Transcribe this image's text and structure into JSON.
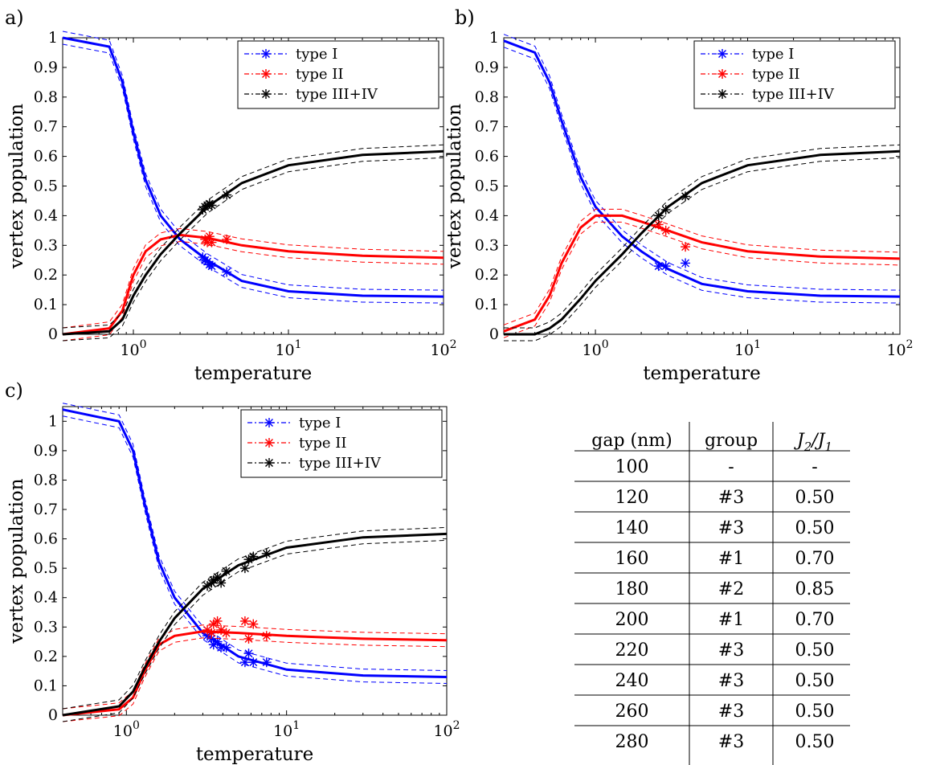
{
  "panel_labels": [
    "a)",
    "b)",
    "c)"
  ],
  "colors": {
    "type_I": "#0000ff",
    "type_II": "#ff0000",
    "type_III_IV": "#000000"
  },
  "chart_data": [
    {
      "type": "line",
      "panel": "a)",
      "xlabel": "temperature",
      "ylabel": "vertex population",
      "x_scale": "log",
      "xlim": [
        0.35,
        100
      ],
      "ylim": [
        0,
        1
      ],
      "x_ticks": [
        "10^0",
        "10^1",
        "10^2"
      ],
      "y_ticks": [
        "0",
        "0.1",
        "0.2",
        "0.3",
        "0.4",
        "0.5",
        "0.6",
        "0.7",
        "0.8",
        "0.9",
        "1"
      ],
      "legend_position": "top-right",
      "series": [
        {
          "name": "type I",
          "color": "#0000ff",
          "curve": {
            "x": [
              0.35,
              0.7,
              0.85,
              1.0,
              1.2,
              1.5,
              2,
              3,
              5,
              10,
              30,
              100
            ],
            "y": [
              1.0,
              0.97,
              0.85,
              0.68,
              0.52,
              0.4,
              0.32,
              0.25,
              0.18,
              0.145,
              0.13,
              0.127
            ]
          },
          "markers": {
            "x": [
              2.8,
              2.9,
              3.0,
              3.1,
              3.2,
              4.0
            ],
            "y": [
              0.26,
              0.25,
              0.245,
              0.235,
              0.23,
              0.21
            ]
          }
        },
        {
          "name": "type II",
          "color": "#ff0000",
          "curve": {
            "x": [
              0.35,
              0.7,
              0.85,
              1.0,
              1.2,
              1.5,
              2,
              3,
              5,
              10,
              30,
              100
            ],
            "y": [
              0.0,
              0.02,
              0.08,
              0.2,
              0.28,
              0.32,
              0.335,
              0.325,
              0.3,
              0.28,
              0.265,
              0.258
            ]
          },
          "markers": {
            "x": [
              2.9,
              3.0,
              3.1,
              3.2,
              4.0
            ],
            "y": [
              0.32,
              0.31,
              0.33,
              0.31,
              0.32
            ]
          }
        },
        {
          "name": "type III+IV",
          "color": "#000000",
          "curve": {
            "x": [
              0.35,
              0.7,
              0.85,
              1.0,
              1.2,
              1.5,
              2,
              3,
              5,
              10,
              30,
              100
            ],
            "y": [
              0.0,
              0.01,
              0.05,
              0.13,
              0.2,
              0.27,
              0.34,
              0.43,
              0.51,
              0.57,
              0.605,
              0.617
            ]
          },
          "markers": {
            "x": [
              2.8,
              2.9,
              3.0,
              3.1,
              3.2,
              4.0
            ],
            "y": [
              0.42,
              0.43,
              0.435,
              0.44,
              0.435,
              0.47
            ]
          }
        }
      ]
    },
    {
      "type": "line",
      "panel": "b)",
      "xlabel": "temperature",
      "ylabel": "vertex population",
      "x_scale": "log",
      "xlim": [
        0.25,
        100
      ],
      "ylim": [
        0,
        1
      ],
      "x_ticks": [
        "10^0",
        "10^1",
        "10^2"
      ],
      "y_ticks": [
        "0",
        "0.1",
        "0.2",
        "0.3",
        "0.4",
        "0.5",
        "0.6",
        "0.7",
        "0.8",
        "0.9",
        "1"
      ],
      "legend_position": "top-right",
      "series": [
        {
          "name": "type I",
          "color": "#0000ff",
          "curve": {
            "x": [
              0.25,
              0.4,
              0.5,
              0.6,
              0.8,
              1.0,
              1.5,
              2,
              3,
              5,
              10,
              30,
              100
            ],
            "y": [
              0.99,
              0.95,
              0.85,
              0.72,
              0.53,
              0.43,
              0.33,
              0.28,
              0.22,
              0.17,
              0.145,
              0.13,
              0.127
            ]
          },
          "markers": {
            "x": [
              2.6,
              2.9,
              3.9
            ],
            "y": [
              0.23,
              0.23,
              0.24
            ]
          }
        },
        {
          "name": "type II",
          "color": "#ff0000",
          "curve": {
            "x": [
              0.25,
              0.4,
              0.5,
              0.6,
              0.8,
              1.0,
              1.5,
              2,
              3,
              5,
              10,
              30,
              100
            ],
            "y": [
              0.01,
              0.05,
              0.13,
              0.24,
              0.36,
              0.4,
              0.4,
              0.38,
              0.35,
              0.31,
              0.28,
              0.262,
              0.255
            ]
          },
          "markers": {
            "x": [
              2.6,
              2.9,
              3.9
            ],
            "y": [
              0.37,
              0.35,
              0.295
            ]
          }
        },
        {
          "name": "type III+IV",
          "color": "#000000",
          "curve": {
            "x": [
              0.25,
              0.4,
              0.5,
              0.6,
              0.8,
              1.0,
              1.5,
              2,
              3,
              5,
              10,
              30,
              100
            ],
            "y": [
              0.0,
              0.0,
              0.02,
              0.05,
              0.12,
              0.18,
              0.27,
              0.34,
              0.43,
              0.51,
              0.57,
              0.605,
              0.617
            ]
          },
          "markers": {
            "x": [
              2.6,
              2.9,
              3.9
            ],
            "y": [
              0.4,
              0.42,
              0.465
            ]
          }
        }
      ]
    },
    {
      "type": "line",
      "panel": "c)",
      "xlabel": "temperature",
      "ylabel": "vertex population",
      "x_scale": "log",
      "xlim": [
        0.4,
        100
      ],
      "ylim": [
        0,
        1.05
      ],
      "x_ticks": [
        "10^0",
        "10^1",
        "10^2"
      ],
      "y_ticks": [
        "0",
        "0.1",
        "0.2",
        "0.3",
        "0.4",
        "0.5",
        "0.6",
        "0.7",
        "0.8",
        "0.9",
        "1"
      ],
      "legend_position": "top-right",
      "series": [
        {
          "name": "type I",
          "color": "#0000ff",
          "curve": {
            "x": [
              0.4,
              0.9,
              1.1,
              1.3,
              1.6,
              2,
              3,
              5,
              10,
              30,
              100
            ],
            "y": [
              1.04,
              1.0,
              0.9,
              0.72,
              0.52,
              0.4,
              0.28,
              0.2,
              0.155,
              0.135,
              0.13
            ]
          },
          "markers": {
            "x": [
              3.2,
              3.4,
              3.5,
              3.7,
              3.9,
              4.2,
              5.5,
              5.8,
              6.2,
              7.5
            ],
            "y": [
              0.27,
              0.26,
              0.24,
              0.25,
              0.23,
              0.23,
              0.18,
              0.21,
              0.18,
              0.18
            ]
          }
        },
        {
          "name": "type II",
          "color": "#ff0000",
          "curve": {
            "x": [
              0.4,
              0.9,
              1.1,
              1.3,
              1.6,
              2,
              3,
              5,
              10,
              30,
              100
            ],
            "y": [
              0.0,
              0.02,
              0.06,
              0.15,
              0.24,
              0.27,
              0.285,
              0.28,
              0.27,
              0.26,
              0.255
            ]
          },
          "markers": {
            "x": [
              3.2,
              3.4,
              3.5,
              3.7,
              3.9,
              4.2,
              5.5,
              5.8,
              6.2,
              7.5
            ],
            "y": [
              0.29,
              0.28,
              0.31,
              0.32,
              0.29,
              0.28,
              0.32,
              0.26,
              0.31,
              0.27
            ]
          }
        },
        {
          "name": "type III+IV",
          "color": "#000000",
          "curve": {
            "x": [
              0.4,
              0.9,
              1.1,
              1.3,
              1.6,
              2,
              3,
              5,
              10,
              30,
              100
            ],
            "y": [
              0.0,
              0.03,
              0.08,
              0.16,
              0.25,
              0.33,
              0.43,
              0.51,
              0.57,
              0.605,
              0.617
            ]
          },
          "markers": {
            "x": [
              3.2,
              3.4,
              3.5,
              3.7,
              3.9,
              4.2,
              5.5,
              5.8,
              6.2,
              7.5
            ],
            "y": [
              0.44,
              0.45,
              0.46,
              0.47,
              0.45,
              0.49,
              0.5,
              0.53,
              0.54,
              0.55
            ]
          }
        }
      ]
    },
    {
      "type": "table",
      "columns": [
        "gap (nm)",
        "group",
        "J2/J1"
      ],
      "rows": [
        [
          "100",
          "-",
          "-"
        ],
        [
          "120",
          "#3",
          "0.50"
        ],
        [
          "140",
          "#3",
          "0.50"
        ],
        [
          "160",
          "#1",
          "0.70"
        ],
        [
          "180",
          "#2",
          "0.85"
        ],
        [
          "200",
          "#1",
          "0.70"
        ],
        [
          "220",
          "#3",
          "0.50"
        ],
        [
          "240",
          "#3",
          "0.50"
        ],
        [
          "260",
          "#3",
          "0.50"
        ],
        [
          "280",
          "#3",
          "0.50"
        ]
      ]
    }
  ]
}
